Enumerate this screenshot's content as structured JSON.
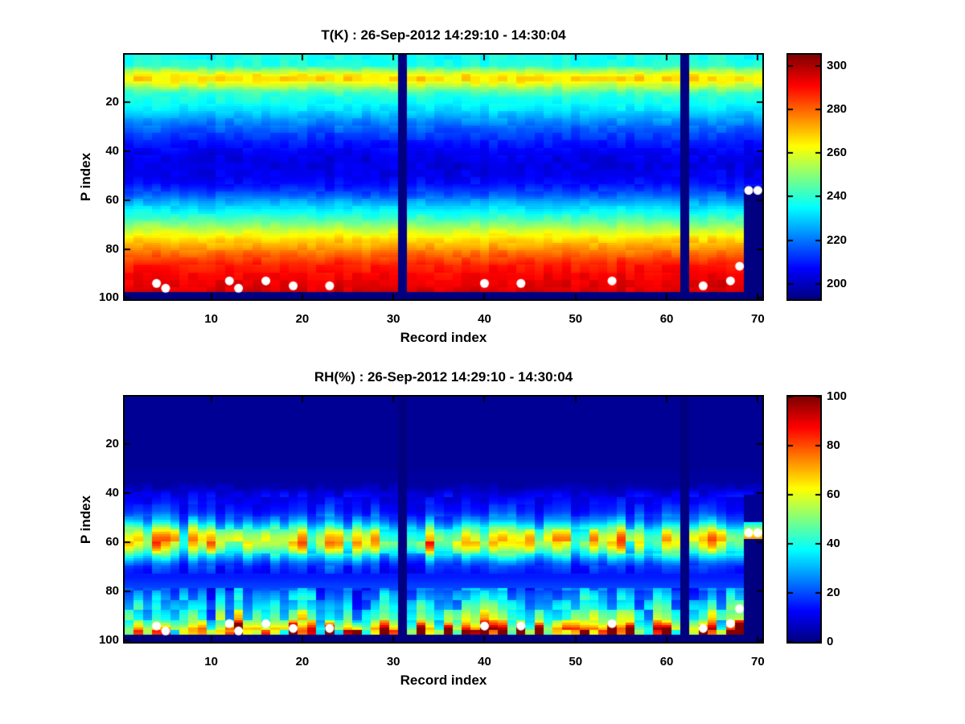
{
  "figure": {
    "background": "#ffffff",
    "axis_color": "#000000",
    "marker_color": "#ffffff",
    "colormap": "jet"
  },
  "chart_data": [
    {
      "type": "heatmap",
      "kind": "T",
      "title": "T(K) : 26-Sep-2012 14:29:10 - 14:30:04",
      "xlabel": "Record index",
      "ylabel": "P index",
      "x_range": [
        1,
        70
      ],
      "y_range": [
        1,
        100
      ],
      "y_axis_reversed": true,
      "x_ticks": [
        10,
        20,
        30,
        40,
        50,
        60,
        70
      ],
      "y_ticks": [
        20,
        40,
        60,
        80,
        100
      ],
      "color_range": [
        193,
        305
      ],
      "colorbar_ticks": [
        300,
        280,
        260,
        240,
        220,
        200
      ],
      "profile": [
        237,
        237,
        238,
        238,
        239,
        245,
        252,
        258,
        263,
        266,
        266,
        262,
        257,
        251,
        246,
        242,
        240,
        238,
        237,
        236,
        235,
        233,
        232,
        230,
        228,
        226,
        224,
        222,
        220,
        219,
        217,
        216,
        214,
        213,
        212,
        210,
        209,
        208,
        207,
        206,
        205,
        205,
        204,
        204,
        204,
        204,
        204,
        205,
        205,
        205,
        206,
        207,
        208,
        209,
        211,
        213,
        215,
        217,
        220,
        223,
        226,
        228,
        231,
        234,
        236,
        239,
        241,
        244,
        247,
        250,
        253,
        256,
        259,
        262,
        264,
        267,
        269,
        271,
        273,
        275,
        277,
        279,
        281,
        283,
        285,
        287,
        288,
        289,
        290,
        291,
        292,
        292,
        293,
        293,
        294,
        294,
        295,
        193,
        193,
        193
      ],
      "missing_columns": [
        31,
        62
      ],
      "missing_block": {
        "columns": [
          69,
          70
        ],
        "from_row": 55
      },
      "missing_bottom_from": 98,
      "texture": {
        "row_block": 3,
        "amplitude": 5,
        "column_amplitude": 3,
        "band_rows": [
          6,
          15
        ],
        "band_extra": 6
      },
      "markers": [
        [
          4,
          94
        ],
        [
          5,
          96
        ],
        [
          12,
          93
        ],
        [
          13,
          96
        ],
        [
          16,
          93
        ],
        [
          19,
          95
        ],
        [
          23,
          95
        ],
        [
          40,
          94
        ],
        [
          44,
          94
        ],
        [
          54,
          93
        ],
        [
          64,
          95
        ],
        [
          67,
          93
        ],
        [
          68,
          87
        ],
        [
          69,
          56
        ],
        [
          70,
          56
        ]
      ]
    },
    {
      "type": "heatmap",
      "kind": "RH",
      "title": "RH(%) : 26-Sep-2012 14:29:10 - 14:30:04",
      "xlabel": "Record index",
      "ylabel": "P index",
      "x_range": [
        1,
        70
      ],
      "y_range": [
        1,
        100
      ],
      "y_axis_reversed": true,
      "x_ticks": [
        10,
        20,
        30,
        40,
        50,
        60,
        70
      ],
      "y_ticks": [
        20,
        40,
        60,
        80,
        100
      ],
      "color_range": [
        0,
        100
      ],
      "colorbar_ticks": [
        100,
        80,
        60,
        40,
        20,
        0
      ],
      "profile": [
        2,
        2,
        2,
        2,
        2,
        2,
        2,
        2,
        2,
        2,
        2,
        2,
        2,
        2,
        2,
        2,
        2,
        2,
        2,
        2,
        2,
        2,
        2,
        2,
        2,
        2,
        2,
        2,
        2,
        2,
        3,
        3,
        3,
        3,
        3,
        4,
        5,
        6,
        8,
        10,
        11,
        12,
        13,
        14,
        15,
        16,
        17,
        19,
        22,
        25,
        29,
        34,
        40,
        46,
        52,
        57,
        61,
        64,
        65,
        65,
        63,
        59,
        54,
        48,
        42,
        36,
        31,
        26,
        22,
        19,
        17,
        16,
        15,
        15,
        16,
        17,
        18,
        19,
        21,
        22,
        24,
        26,
        27,
        29,
        31,
        33,
        34,
        36,
        38,
        40,
        42,
        45,
        49,
        54,
        60,
        65,
        63,
        0,
        0,
        0
      ],
      "missing_columns": [
        31,
        62
      ],
      "missing_block": {
        "columns": [
          69,
          70
        ],
        "from_row": 59
      },
      "upper_blob": {
        "columns": [
          69,
          70
        ],
        "rows": [
          52,
          58
        ],
        "boost": 1.1
      },
      "missing_bottom_from": 98,
      "texture": {
        "mid_band_rows": [
          42,
          72
        ],
        "low_band_rows": [
          79,
          97
        ],
        "mid_factor": [
          0.7,
          0.45
        ],
        "low_factor": [
          0.6,
          0.7
        ]
      },
      "bottom_hotspots": [
        [
          5,
          0.5
        ],
        [
          12,
          0.7
        ],
        [
          13,
          0.95
        ],
        [
          16,
          0.5
        ],
        [
          19,
          1.0
        ],
        [
          23,
          0.8
        ],
        [
          26,
          0.65
        ],
        [
          33,
          0.55
        ],
        [
          36,
          1.0
        ],
        [
          40,
          0.75
        ],
        [
          44,
          0.85
        ],
        [
          46,
          1.0
        ],
        [
          54,
          1.0
        ],
        [
          56,
          0.75
        ],
        [
          60,
          0.5
        ],
        [
          64,
          0.55
        ],
        [
          68,
          1.0
        ]
      ],
      "markers": [
        [
          4,
          94
        ],
        [
          5,
          96
        ],
        [
          12,
          93
        ],
        [
          13,
          96
        ],
        [
          16,
          93
        ],
        [
          19,
          95
        ],
        [
          23,
          95
        ],
        [
          40,
          94
        ],
        [
          44,
          94
        ],
        [
          54,
          93
        ],
        [
          64,
          95
        ],
        [
          67,
          93
        ],
        [
          68,
          87
        ],
        [
          69,
          56
        ],
        [
          70,
          56
        ]
      ]
    }
  ]
}
